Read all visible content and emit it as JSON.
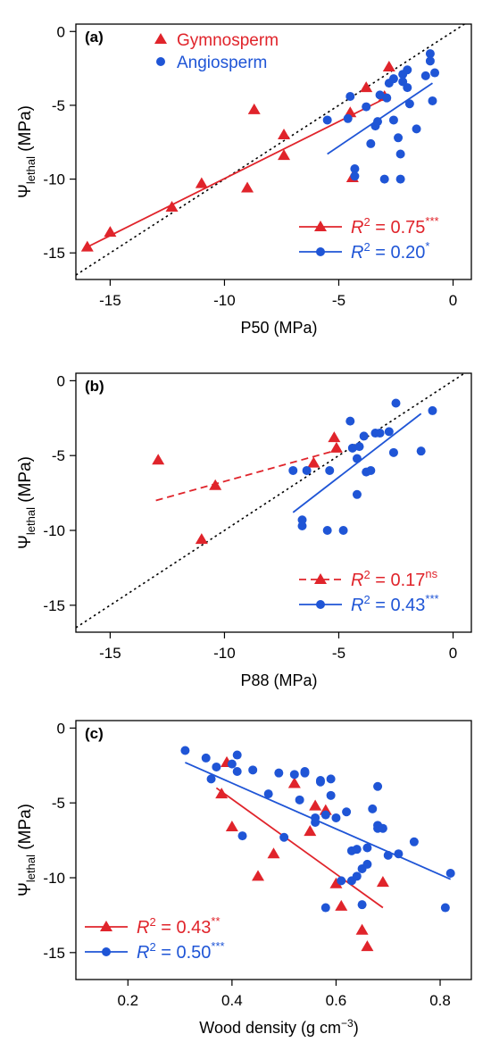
{
  "figure": {
    "colors": {
      "gymno": "#e0242b",
      "angio": "#1f55d6",
      "axis": "#000000"
    },
    "legend_group_labels": {
      "gymno": "Gymnosperm",
      "angio": "Angiosperm"
    }
  },
  "chart_data": [
    {
      "type": "scatter",
      "panel_label": "(a)",
      "xlabel": "P50 (MPa)",
      "ylabel_main": "Ψ",
      "ylabel_sub": "lethal",
      "ylabel_unit": "(MPa)",
      "xlim": [
        -16.5,
        0.8
      ],
      "ylim": [
        -16.8,
        0.5
      ],
      "xticks": [
        -15,
        -10,
        -5,
        0
      ],
      "yticks": [
        0,
        -5,
        -10,
        -15
      ],
      "one_to_one_line": true,
      "legend_top": "top-left",
      "legend_bottom": "bottom-right",
      "series": [
        {
          "name": "Gymnosperm",
          "marker": "triangle",
          "r2_text": "= 0.75",
          "significance": "***",
          "fit": {
            "x": [
              -16,
              -2.8
            ],
            "y": [
              -14.6,
              -4.4
            ],
            "dashed": false
          },
          "points": [
            [
              -16,
              -14.6
            ],
            [
              -15,
              -13.6
            ],
            [
              -12.3,
              -11.9
            ],
            [
              -11,
              -10.3
            ],
            [
              -9,
              -10.6
            ],
            [
              -8.7,
              -5.3
            ],
            [
              -7.4,
              -8.4
            ],
            [
              -7.4,
              -7.0
            ],
            [
              -4.5,
              -5.5
            ],
            [
              -4.4,
              -9.9
            ],
            [
              -3.8,
              -3.8
            ],
            [
              -3.0,
              -4.4
            ],
            [
              -2.8,
              -2.4
            ]
          ]
        },
        {
          "name": "Angiosperm",
          "marker": "circle",
          "r2_text": "= 0.20",
          "significance": "*",
          "fit": {
            "x": [
              -5.5,
              -0.9
            ],
            "y": [
              -8.3,
              -3.5
            ],
            "dashed": false
          },
          "points": [
            [
              -5.5,
              -6.0
            ],
            [
              -4.6,
              -5.9
            ],
            [
              -4.5,
              -4.4
            ],
            [
              -4.3,
              -9.3
            ],
            [
              -4.3,
              -9.8
            ],
            [
              -3.8,
              -5.1
            ],
            [
              -3.6,
              -7.6
            ],
            [
              -3.4,
              -6.4
            ],
            [
              -3.3,
              -6.1
            ],
            [
              -3.2,
              -4.3
            ],
            [
              -3.0,
              -10.0
            ],
            [
              -2.9,
              -4.5
            ],
            [
              -2.8,
              -3.5
            ],
            [
              -2.6,
              -3.2
            ],
            [
              -2.6,
              -6.0
            ],
            [
              -2.4,
              -7.2
            ],
            [
              -2.3,
              -8.3
            ],
            [
              -2.3,
              -10.0
            ],
            [
              -2.2,
              -3.4
            ],
            [
              -2.2,
              -2.9
            ],
            [
              -2.0,
              -2.6
            ],
            [
              -2.0,
              -3.8
            ],
            [
              -1.9,
              -4.9
            ],
            [
              -1.6,
              -6.6
            ],
            [
              -1.2,
              -3.0
            ],
            [
              -1.0,
              -1.5
            ],
            [
              -1.0,
              -2.0
            ],
            [
              -0.9,
              -4.7
            ],
            [
              -0.8,
              -2.8
            ]
          ]
        }
      ]
    },
    {
      "type": "scatter",
      "panel_label": "(b)",
      "xlabel": "P88 (MPa)",
      "ylabel_main": "Ψ",
      "ylabel_sub": "lethal",
      "ylabel_unit": "(MPa)",
      "xlim": [
        -16.5,
        0.8
      ],
      "ylim": [
        -16.8,
        0.5
      ],
      "xticks": [
        -15,
        -10,
        -5,
        0
      ],
      "yticks": [
        0,
        -5,
        -10,
        -15
      ],
      "one_to_one_line": true,
      "legend_top": "none",
      "legend_bottom": "bottom-right",
      "series": [
        {
          "name": "Gymnosperm",
          "marker": "triangle",
          "r2_text": "= 0.17",
          "significance": "ns",
          "fit": {
            "x": [
              -13,
              -5
            ],
            "y": [
              -8.0,
              -4.6
            ],
            "dashed": true
          },
          "points": [
            [
              -12.9,
              -5.3
            ],
            [
              -11.0,
              -10.6
            ],
            [
              -10.4,
              -7.0
            ],
            [
              -6.1,
              -5.5
            ],
            [
              -5.2,
              -3.8
            ],
            [
              -5.1,
              -4.5
            ]
          ]
        },
        {
          "name": "Angiosperm",
          "marker": "circle",
          "r2_text": "= 0.43",
          "significance": "***",
          "fit": {
            "x": [
              -7.0,
              -1.4
            ],
            "y": [
              -8.8,
              -2.2
            ],
            "dashed": false
          },
          "points": [
            [
              -7.0,
              -6.0
            ],
            [
              -6.6,
              -9.3
            ],
            [
              -6.6,
              -9.7
            ],
            [
              -6.4,
              -6.0
            ],
            [
              -5.5,
              -10.0
            ],
            [
              -5.4,
              -6.0
            ],
            [
              -4.8,
              -10.0
            ],
            [
              -4.5,
              -2.7
            ],
            [
              -4.4,
              -4.5
            ],
            [
              -4.2,
              -7.6
            ],
            [
              -4.2,
              -5.2
            ],
            [
              -4.1,
              -4.4
            ],
            [
              -3.9,
              -3.7
            ],
            [
              -3.8,
              -6.1
            ],
            [
              -3.6,
              -6.0
            ],
            [
              -3.4,
              -3.5
            ],
            [
              -3.2,
              -3.5
            ],
            [
              -2.8,
              -3.4
            ],
            [
              -2.6,
              -4.8
            ],
            [
              -2.5,
              -1.5
            ],
            [
              -1.4,
              -4.7
            ],
            [
              -0.9,
              -2.0
            ]
          ]
        }
      ]
    },
    {
      "type": "scatter",
      "panel_label": "(c)",
      "xlabel_main": "Wood density (g cm",
      "xlabel_sup": "−3",
      "xlabel_end": ")",
      "ylabel_main": "Ψ",
      "ylabel_sub": "lethal",
      "ylabel_unit": "(MPa)",
      "xlim": [
        0.1,
        0.86
      ],
      "ylim": [
        -16.8,
        0.5
      ],
      "xticks": [
        0.2,
        0.4,
        0.6,
        0.8
      ],
      "xtick_labels": [
        "0.2",
        "0.4",
        "0.6",
        "0.8"
      ],
      "yticks": [
        0,
        -5,
        -10,
        -15
      ],
      "one_to_one_line": false,
      "legend_top": "none",
      "legend_bottom": "bottom-left",
      "series": [
        {
          "name": "Gymnosperm",
          "marker": "triangle",
          "r2_text": "= 0.43",
          "significance": "**",
          "fit": {
            "x": [
              0.37,
              0.69
            ],
            "y": [
              -4.0,
              -12.0
            ],
            "dashed": false
          },
          "points": [
            [
              0.38,
              -4.4
            ],
            [
              0.39,
              -2.3
            ],
            [
              0.4,
              -6.6
            ],
            [
              0.45,
              -9.9
            ],
            [
              0.48,
              -8.4
            ],
            [
              0.52,
              -3.7
            ],
            [
              0.55,
              -6.9
            ],
            [
              0.56,
              -5.2
            ],
            [
              0.58,
              -5.5
            ],
            [
              0.6,
              -10.4
            ],
            [
              0.61,
              -11.9
            ],
            [
              0.65,
              -13.5
            ],
            [
              0.66,
              -14.6
            ],
            [
              0.69,
              -10.3
            ]
          ]
        },
        {
          "name": "Angiosperm",
          "marker": "circle",
          "r2_text": "= 0.50",
          "significance": "***",
          "fit": {
            "x": [
              0.31,
              0.82
            ],
            "y": [
              -2.3,
              -10.1
            ],
            "dashed": false
          },
          "points": [
            [
              0.31,
              -1.5
            ],
            [
              0.35,
              -2.0
            ],
            [
              0.36,
              -3.4
            ],
            [
              0.37,
              -2.6
            ],
            [
              0.4,
              -2.4
            ],
            [
              0.41,
              -1.8
            ],
            [
              0.41,
              -2.9
            ],
            [
              0.42,
              -7.2
            ],
            [
              0.44,
              -2.8
            ],
            [
              0.47,
              -4.4
            ],
            [
              0.49,
              -3.0
            ],
            [
              0.5,
              -7.3
            ],
            [
              0.52,
              -3.1
            ],
            [
              0.53,
              -4.8
            ],
            [
              0.54,
              -3.0
            ],
            [
              0.54,
              -2.9
            ],
            [
              0.56,
              -6.0
            ],
            [
              0.56,
              -6.3
            ],
            [
              0.57,
              -3.6
            ],
            [
              0.57,
              -3.5
            ],
            [
              0.58,
              -5.8
            ],
            [
              0.58,
              -12.0
            ],
            [
              0.59,
              -3.4
            ],
            [
              0.59,
              -4.5
            ],
            [
              0.6,
              -6.0
            ],
            [
              0.61,
              -10.2
            ],
            [
              0.62,
              -5.6
            ],
            [
              0.63,
              -8.2
            ],
            [
              0.63,
              -10.2
            ],
            [
              0.64,
              -8.1
            ],
            [
              0.64,
              -9.9
            ],
            [
              0.65,
              -9.4
            ],
            [
              0.65,
              -11.8
            ],
            [
              0.66,
              -8.0
            ],
            [
              0.66,
              -9.1
            ],
            [
              0.67,
              -5.4
            ],
            [
              0.68,
              -6.7
            ],
            [
              0.68,
              -6.5
            ],
            [
              0.68,
              -3.9
            ],
            [
              0.69,
              -6.7
            ],
            [
              0.7,
              -8.5
            ],
            [
              0.72,
              -8.4
            ],
            [
              0.75,
              -7.6
            ],
            [
              0.81,
              -12.0
            ],
            [
              0.82,
              -9.7
            ]
          ]
        }
      ]
    }
  ]
}
